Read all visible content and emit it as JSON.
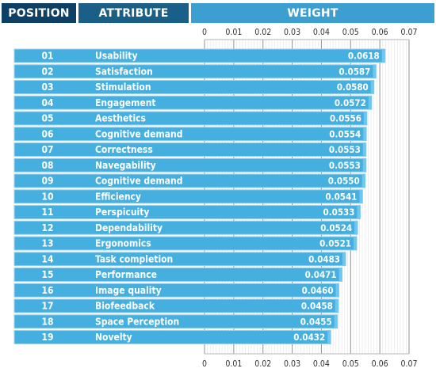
{
  "headers": {
    "position": "POSITION",
    "attribute": "ATTRIBUTE",
    "weight": "WEIGHT"
  },
  "colors": {
    "header_position": "#0e3f64",
    "header_attribute": "#1a5f88",
    "header_weight": "#3d9fd1",
    "bar": "#45b0e0",
    "bar_edge": "#6dc7ee",
    "row_border": "#9fd3ee"
  },
  "chart_data": {
    "type": "bar",
    "orientation": "horizontal",
    "title": "",
    "xlabel": "",
    "ylabel": "",
    "xlim": [
      0,
      0.07
    ],
    "ticks": [
      "0",
      "0.01",
      "0.02",
      "0.03",
      "0.04",
      "0.05",
      "0.06",
      "0.07"
    ],
    "grid": true,
    "value_labels": [
      "0.0618",
      "0.0587",
      "0.0580",
      "0.0572",
      "0.0556",
      "0.0554",
      "0.0553",
      "0.0553",
      "0.0550",
      "0.0541",
      "0.0533",
      "0.0524",
      "0.0521",
      "0.0483",
      "0.0471",
      "0.0460",
      "0.0458",
      "0.0455",
      "0.0432"
    ],
    "rows": [
      {
        "position": "01",
        "attribute": "Usability",
        "value": 0.0618
      },
      {
        "position": "02",
        "attribute": "Satisfaction",
        "value": 0.0587
      },
      {
        "position": "03",
        "attribute": "Stimulation",
        "value": 0.058
      },
      {
        "position": "04",
        "attribute": "Engagement",
        "value": 0.0572
      },
      {
        "position": "05",
        "attribute": "Aesthetics",
        "value": 0.0556
      },
      {
        "position": "06",
        "attribute": "Cognitive demand",
        "value": 0.0554
      },
      {
        "position": "07",
        "attribute": "Correctness",
        "value": 0.0553
      },
      {
        "position": "08",
        "attribute": "Navegability",
        "value": 0.0553
      },
      {
        "position": "09",
        "attribute": "Cognitive demand",
        "value": 0.055
      },
      {
        "position": "10",
        "attribute": "Efficiency",
        "value": 0.0541
      },
      {
        "position": "11",
        "attribute": "Perspicuity",
        "value": 0.0533
      },
      {
        "position": "12",
        "attribute": "Dependability",
        "value": 0.0524
      },
      {
        "position": "13",
        "attribute": "Ergonomics",
        "value": 0.0521
      },
      {
        "position": "14",
        "attribute": "Task completion",
        "value": 0.0483
      },
      {
        "position": "15",
        "attribute": "Performance",
        "value": 0.0471
      },
      {
        "position": "16",
        "attribute": "Image quality",
        "value": 0.046
      },
      {
        "position": "17",
        "attribute": "Biofeedback",
        "value": 0.0458
      },
      {
        "position": "18",
        "attribute": "Space Perception",
        "value": 0.0455
      },
      {
        "position": "19",
        "attribute": "Novelty",
        "value": 0.0432
      }
    ]
  }
}
